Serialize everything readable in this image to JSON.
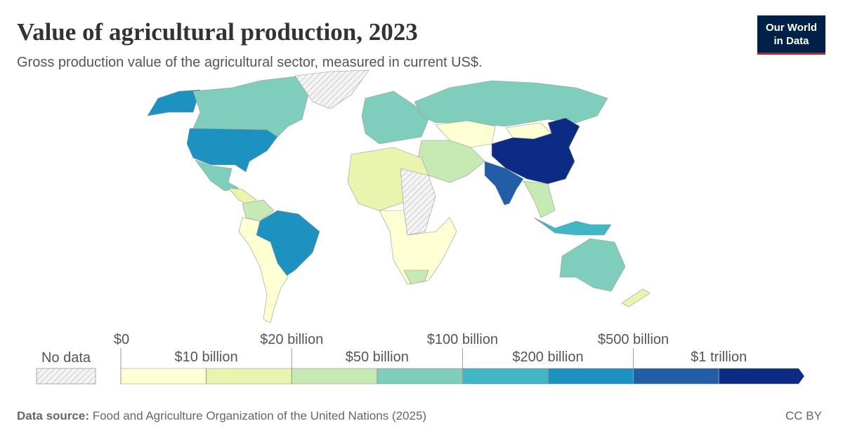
{
  "header": {
    "title": "Value of agricultural production, 2023",
    "subtitle": "Gross production value of the agricultural sector, measured in current US$.",
    "logo": [
      "Our World",
      "in Data"
    ]
  },
  "legend": {
    "no_data_label": "No data",
    "ticks": [
      {
        "value": 0,
        "label": "$0"
      },
      {
        "value": 10000000000,
        "label": "$10 billion"
      },
      {
        "value": 20000000000,
        "label": "$20 billion"
      },
      {
        "value": 50000000000,
        "label": "$50 billion"
      },
      {
        "value": 100000000000,
        "label": "$100 billion"
      },
      {
        "value": 200000000000,
        "label": "$200 billion"
      },
      {
        "value": 500000000000,
        "label": "$500 billion"
      },
      {
        "value": 1000000000000,
        "label": "$1 trillion"
      }
    ],
    "colors": [
      "#feffd3",
      "#e9f5ae",
      "#c7e9b4",
      "#7fcdbb",
      "#41b6c4",
      "#1d91c0",
      "#225ea8",
      "#0c2c84"
    ]
  },
  "footer": {
    "source_label": "Data source:",
    "source": "Food and Agriculture Organization of the United Nations (2025)",
    "license": "CC BY"
  }
}
